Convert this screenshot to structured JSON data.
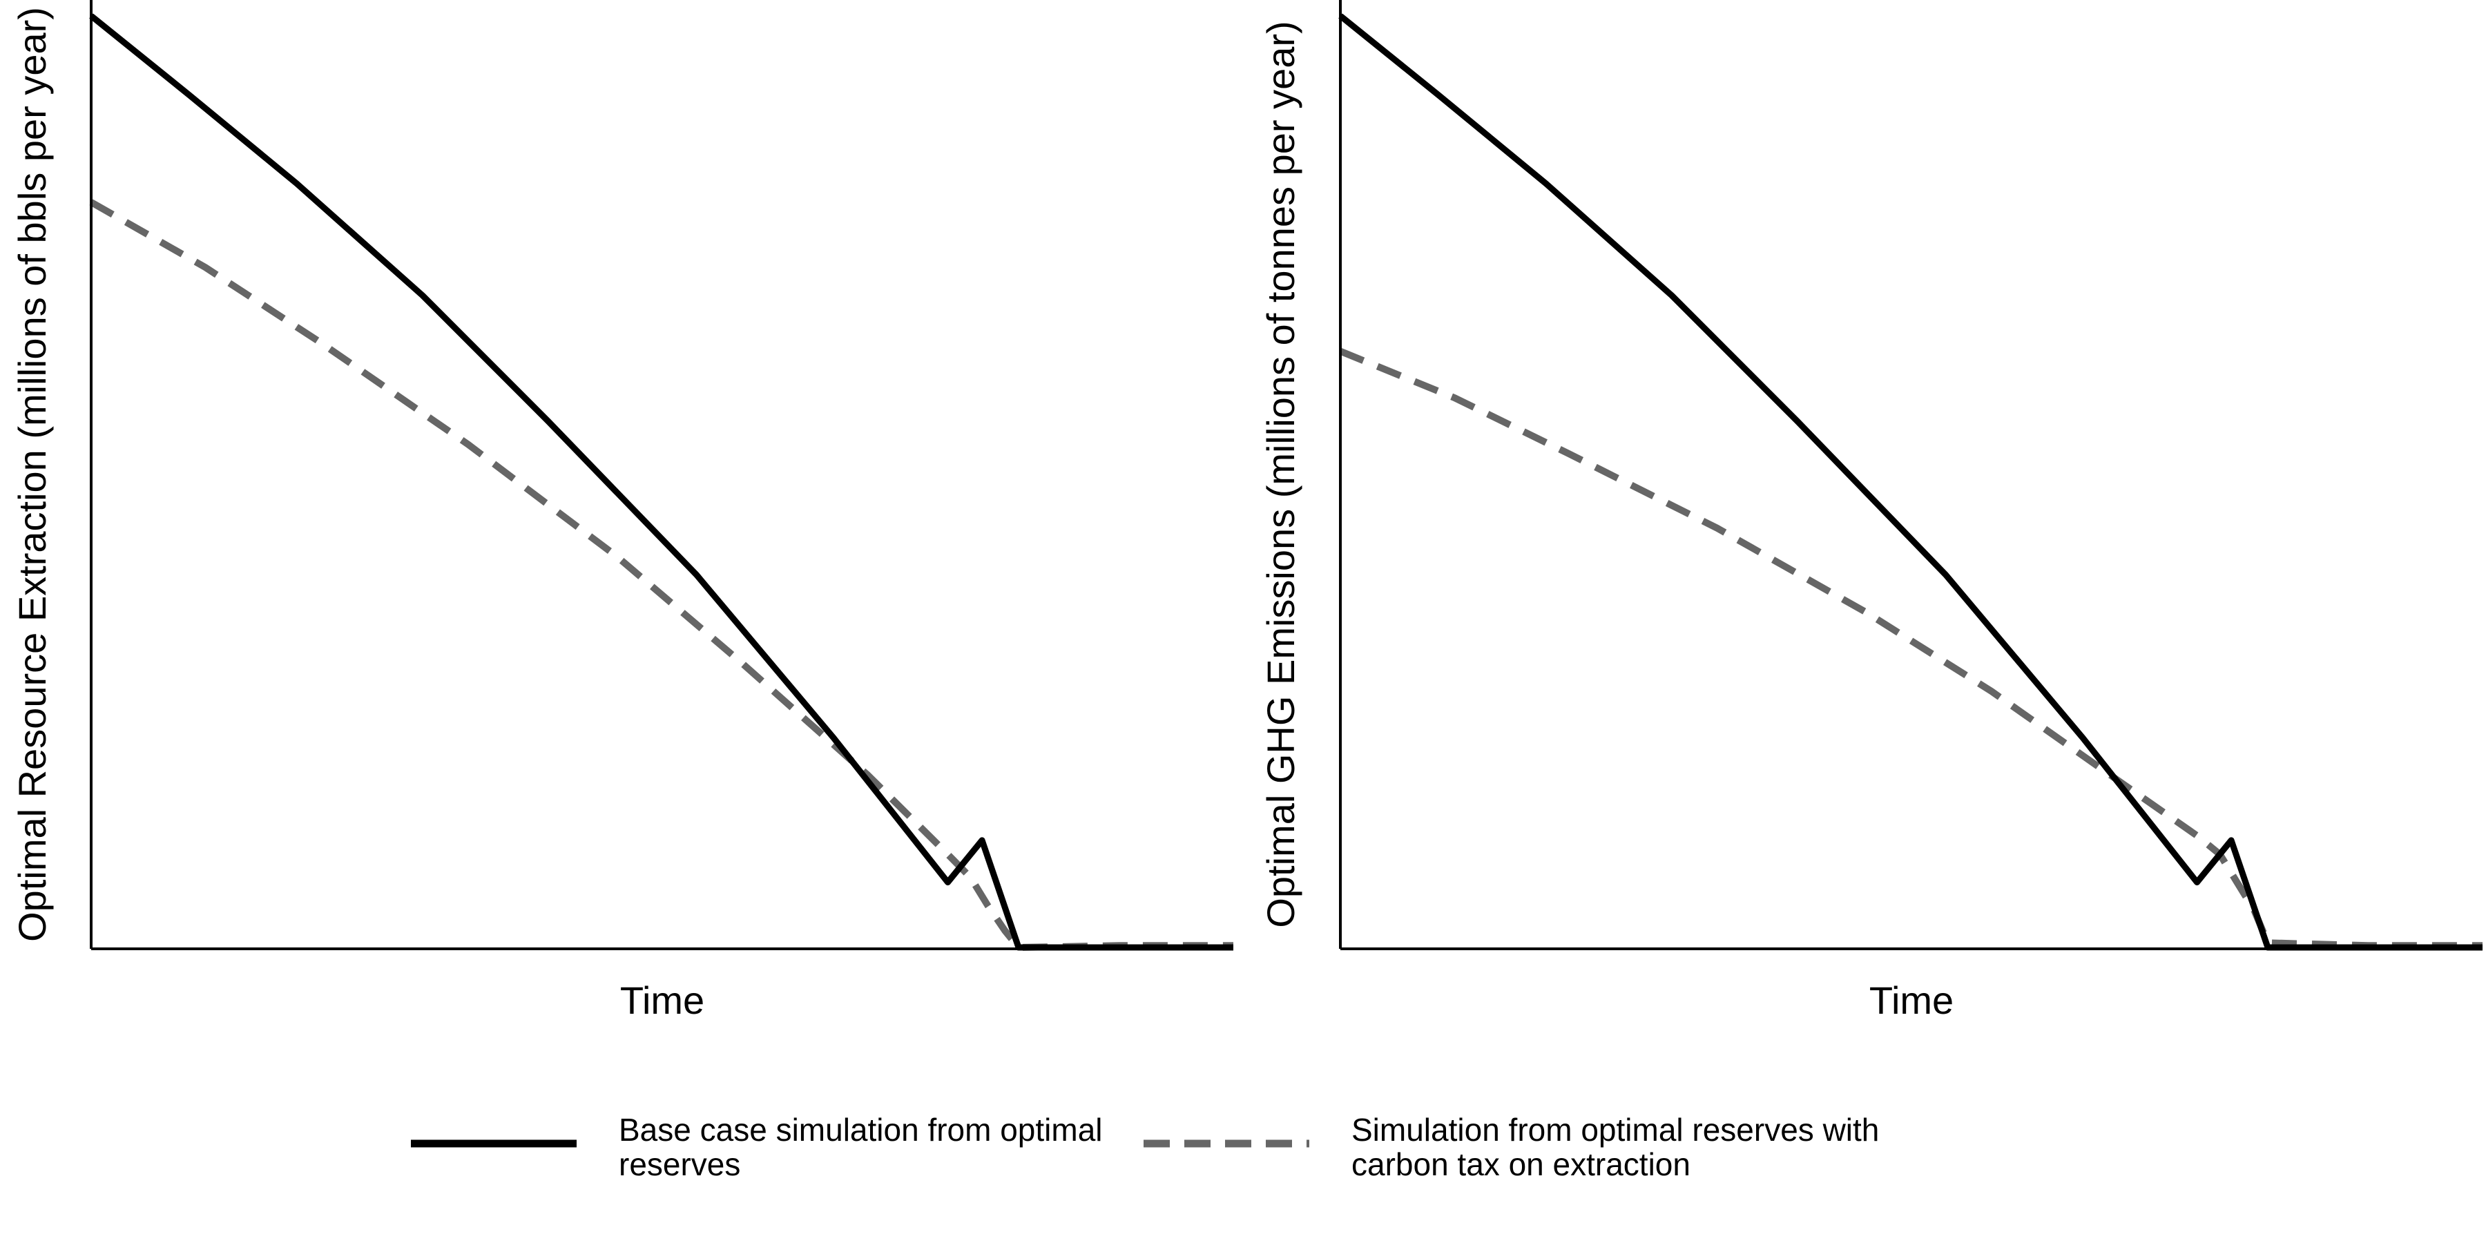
{
  "chart_data": [
    {
      "type": "line",
      "xlabel": "Time",
      "ylabel": "Optimal Resource Extraction (millions of bbls per year)",
      "x_ticks_shown": false,
      "y_ticks_shown": false,
      "grid": false,
      "xlim": [
        0,
        1
      ],
      "ylim": [
        0,
        1
      ],
      "series": [
        {
          "name": "Base case simulation from optimal reserves",
          "style": "solid",
          "color": "#000000",
          "x": [
            0,
            0.086,
            0.18,
            0.29,
            0.4,
            0.53,
            0.65,
            0.75,
            0.78,
            0.812,
            0.85,
            1.0
          ],
          "y": [
            1.0,
            0.915,
            0.82,
            0.7,
            0.565,
            0.4,
            0.225,
            0.07,
            0.115,
            0.0,
            0.0,
            0.0
          ]
        },
        {
          "name": "Simulation from optimal reserves with carbon tax on extraction",
          "style": "dashed",
          "color": "#666666",
          "x": [
            0,
            0.1,
            0.2,
            0.33,
            0.46,
            0.57,
            0.68,
            0.75,
            0.77,
            0.785,
            0.8,
            0.812,
            0.9,
            1.0
          ],
          "y": [
            0.8,
            0.73,
            0.65,
            0.54,
            0.42,
            0.305,
            0.185,
            0.1,
            0.075,
            0.045,
            0.018,
            0.0,
            0.002,
            0.002
          ]
        }
      ]
    },
    {
      "type": "line",
      "xlabel": "Time",
      "ylabel": "Optimal GHG Emissions (millions of tonnes per year)",
      "x_ticks_shown": false,
      "y_ticks_shown": false,
      "grid": false,
      "xlim": [
        0,
        1
      ],
      "ylim": [
        0,
        1
      ],
      "series": [
        {
          "name": "Base case simulation from optimal reserves",
          "style": "solid",
          "color": "#000000",
          "x": [
            0,
            0.086,
            0.18,
            0.29,
            0.4,
            0.53,
            0.65,
            0.75,
            0.78,
            0.812,
            0.85,
            1.0
          ],
          "y": [
            1.0,
            0.915,
            0.82,
            0.7,
            0.565,
            0.4,
            0.225,
            0.07,
            0.115,
            0.0,
            0.0,
            0.0
          ]
        },
        {
          "name": "Simulation from optimal reserves with carbon tax on extraction",
          "style": "dashed",
          "color": "#666666",
          "x": [
            0,
            0.1,
            0.2,
            0.33,
            0.46,
            0.57,
            0.68,
            0.75,
            0.77,
            0.785,
            0.8,
            0.812,
            0.9,
            1.0
          ],
          "y": [
            0.64,
            0.59,
            0.53,
            0.45,
            0.36,
            0.275,
            0.18,
            0.12,
            0.1,
            0.07,
            0.04,
            0.005,
            0.002,
            0.002
          ]
        }
      ]
    }
  ],
  "legend": {
    "placement": "bottom",
    "items": [
      {
        "lines": [
          "Base case simulation from optimal",
          "reserves"
        ],
        "style": "solid",
        "color": "#000000"
      },
      {
        "lines": [
          "Simulation from optimal reserves with",
          "carbon tax on extraction"
        ],
        "style": "dashed",
        "color": "#666666"
      }
    ]
  }
}
